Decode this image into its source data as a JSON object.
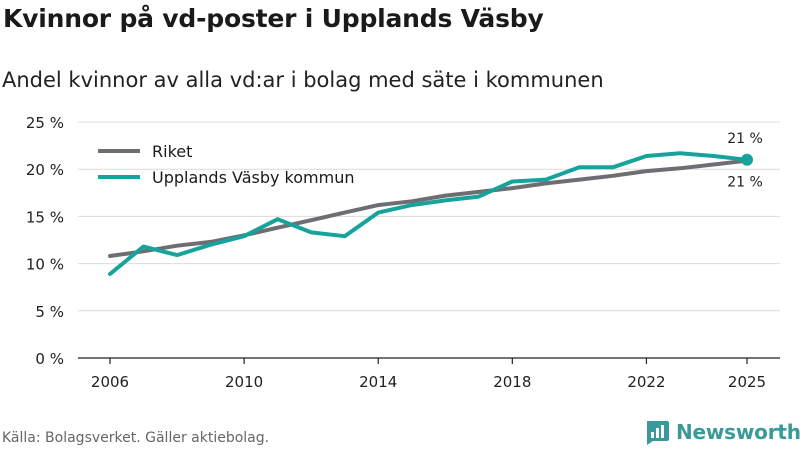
{
  "title": "Kvinnor på vd-poster i Upplands Väsby",
  "subtitle": "Andel kvinnor av alla vd:ar i bolag med säte i kommunen",
  "source": "Källa: Bolagsverket. Gäller aktiebolag.",
  "brand": "Newsworthy",
  "colors": {
    "riket": "#6e6d72",
    "kommun": "#16a39b",
    "grid": "#dcdcdc",
    "brand": "#3a9a99"
  },
  "chart_data": {
    "type": "line",
    "title": "Kvinnor på vd-poster i Upplands Väsby",
    "subtitle": "Andel kvinnor av alla vd:ar i bolag med säte i kommunen",
    "xlabel": "",
    "ylabel": "",
    "xlim": [
      2006,
      2025
    ],
    "ylim": [
      0,
      25
    ],
    "x_ticks": [
      2006,
      2010,
      2014,
      2018,
      2022,
      2025
    ],
    "y_ticks": [
      0,
      5,
      10,
      15,
      20,
      25
    ],
    "y_tick_labels": [
      "0 %",
      "5 %",
      "10 %",
      "15 %",
      "20 %",
      "25 %"
    ],
    "grid": true,
    "legend_position": "top-left",
    "x": [
      2006,
      2007,
      2008,
      2009,
      2010,
      2011,
      2012,
      2013,
      2014,
      2015,
      2016,
      2017,
      2018,
      2019,
      2020,
      2021,
      2022,
      2023,
      2024,
      2025
    ],
    "series": [
      {
        "name": "Riket",
        "color": "#6e6d72",
        "values": [
          10.8,
          11.3,
          11.9,
          12.3,
          13.0,
          13.8,
          14.6,
          15.4,
          16.2,
          16.6,
          17.2,
          17.6,
          18.0,
          18.5,
          18.9,
          19.3,
          19.8,
          20.1,
          20.5,
          20.9
        ]
      },
      {
        "name": "Upplands Väsby kommun",
        "color": "#16a39b",
        "values": [
          8.9,
          11.8,
          10.9,
          12.0,
          12.9,
          14.7,
          13.3,
          12.9,
          15.4,
          16.2,
          16.7,
          17.1,
          18.7,
          18.9,
          20.2,
          20.2,
          21.4,
          21.7,
          21.4,
          21.0
        ]
      }
    ],
    "annotations": [
      {
        "series": "Riket",
        "x": 2025,
        "label": "21 %",
        "placement": "below"
      },
      {
        "series": "Upplands Väsby kommun",
        "x": 2025,
        "label": "21 %",
        "placement": "above"
      }
    ]
  }
}
